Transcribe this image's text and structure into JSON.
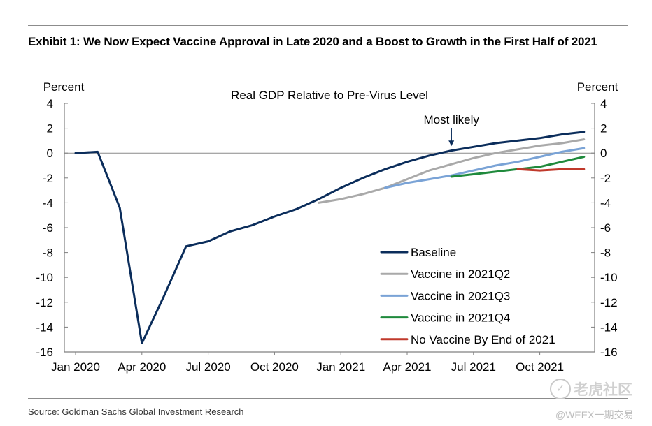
{
  "exhibit_title": "Exhibit 1: We Now Expect Vaccine Approval in Late 2020 and a Boost to Growth in the First Half of 2021",
  "source": "Source: Goldman Sachs Global Investment Research",
  "watermark": {
    "mark": "✓",
    "platform": "老虎社区",
    "handle": "@WEEX一期交易"
  },
  "chart_data": {
    "type": "line",
    "title": "Real GDP Relative to Pre-Virus Level",
    "ylabel_left": "Percent",
    "ylabel_right": "Percent",
    "xlabel": "",
    "ylim": [
      -16,
      4
    ],
    "yticks": [
      4,
      2,
      0,
      -2,
      -4,
      -6,
      -8,
      -10,
      -12,
      -14,
      -16
    ],
    "xlim": [
      "2020-01",
      "2021-12"
    ],
    "x_ticks": [
      {
        "month": "2020-01",
        "label": "Jan 2020"
      },
      {
        "month": "2020-04",
        "label": "Apr 2020"
      },
      {
        "month": "2020-07",
        "label": "Jul 2020"
      },
      {
        "month": "2020-10",
        "label": "Oct 2020"
      },
      {
        "month": "2021-01",
        "label": "Jan 2021"
      },
      {
        "month": "2021-04",
        "label": "Apr 2021"
      },
      {
        "month": "2021-07",
        "label": "Jul 2021"
      },
      {
        "month": "2021-10",
        "label": "Oct 2021"
      }
    ],
    "grid": false,
    "zero_line": true,
    "legend_position": "bottom-right",
    "annotation": {
      "text": "Most likely",
      "x": "2021-06",
      "y": 0
    },
    "series": [
      {
        "name": "Baseline",
        "color": "#0b2d5b",
        "points": [
          [
            "2020-01",
            0.0
          ],
          [
            "2020-02",
            0.1
          ],
          [
            "2020-03",
            -4.4
          ],
          [
            "2020-04",
            -15.3
          ],
          [
            "2020-05",
            -11.5
          ],
          [
            "2020-06",
            -7.5
          ],
          [
            "2020-07",
            -7.1
          ],
          [
            "2020-08",
            -6.3
          ],
          [
            "2020-09",
            -5.8
          ],
          [
            "2020-10",
            -5.1
          ],
          [
            "2020-11",
            -4.5
          ],
          [
            "2020-12",
            -3.7
          ],
          [
            "2021-01",
            -2.8
          ],
          [
            "2021-02",
            -2.0
          ],
          [
            "2021-03",
            -1.3
          ],
          [
            "2021-04",
            -0.7
          ],
          [
            "2021-05",
            -0.2
          ],
          [
            "2021-06",
            0.2
          ],
          [
            "2021-07",
            0.5
          ],
          [
            "2021-08",
            0.8
          ],
          [
            "2021-09",
            1.0
          ],
          [
            "2021-10",
            1.2
          ],
          [
            "2021-11",
            1.5
          ],
          [
            "2021-12",
            1.7
          ]
        ]
      },
      {
        "name": "Vaccine in 2021Q2",
        "color": "#a9a9a9",
        "points": [
          [
            "2020-12",
            -4.0
          ],
          [
            "2021-01",
            -3.7
          ],
          [
            "2021-02",
            -3.3
          ],
          [
            "2021-03",
            -2.8
          ],
          [
            "2021-04",
            -2.1
          ],
          [
            "2021-05",
            -1.4
          ],
          [
            "2021-06",
            -0.9
          ],
          [
            "2021-07",
            -0.4
          ],
          [
            "2021-08",
            0.0
          ],
          [
            "2021-09",
            0.3
          ],
          [
            "2021-10",
            0.6
          ],
          [
            "2021-11",
            0.8
          ],
          [
            "2021-12",
            1.1
          ]
        ]
      },
      {
        "name": "Vaccine in 2021Q3",
        "color": "#7aa3d6",
        "points": [
          [
            "2021-03",
            -2.8
          ],
          [
            "2021-04",
            -2.4
          ],
          [
            "2021-05",
            -2.1
          ],
          [
            "2021-06",
            -1.8
          ],
          [
            "2021-07",
            -1.4
          ],
          [
            "2021-08",
            -1.0
          ],
          [
            "2021-09",
            -0.7
          ],
          [
            "2021-10",
            -0.3
          ],
          [
            "2021-11",
            0.1
          ],
          [
            "2021-12",
            0.4
          ]
        ]
      },
      {
        "name": "Vaccine in 2021Q4",
        "color": "#1f8a3c",
        "points": [
          [
            "2021-06",
            -1.9
          ],
          [
            "2021-07",
            -1.7
          ],
          [
            "2021-08",
            -1.5
          ],
          [
            "2021-09",
            -1.3
          ],
          [
            "2021-10",
            -1.1
          ],
          [
            "2021-11",
            -0.7
          ],
          [
            "2021-12",
            -0.3
          ]
        ]
      },
      {
        "name": "No Vaccine By End of 2021",
        "color": "#c0392b",
        "points": [
          [
            "2021-09",
            -1.3
          ],
          [
            "2021-10",
            -1.4
          ],
          [
            "2021-11",
            -1.3
          ],
          [
            "2021-12",
            -1.3
          ]
        ]
      }
    ]
  }
}
